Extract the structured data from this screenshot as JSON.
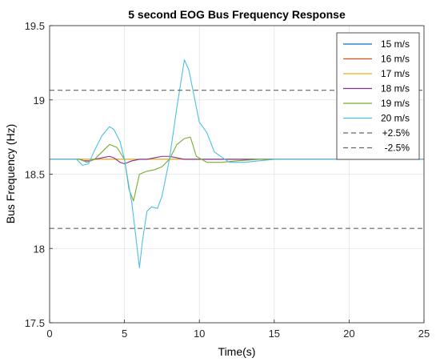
{
  "chart_data": {
    "type": "line",
    "title": "5 second EOG Bus Frequency Response",
    "xlabel": "Time(s)",
    "ylabel": "Bus Frequency (Hz)",
    "xlim": [
      0,
      25
    ],
    "ylim": [
      17.5,
      19.5
    ],
    "xticks": [
      0,
      5,
      10,
      15,
      20,
      25
    ],
    "yticks": [
      17.5,
      18,
      18.5,
      19,
      19.5
    ],
    "grid": true,
    "legend_position": "top-right",
    "series": [
      {
        "name": "15 m/s",
        "color": "#0072BD",
        "dash": "solid",
        "x": [
          0,
          25
        ],
        "y": [
          18.6,
          18.6
        ]
      },
      {
        "name": "16 m/s",
        "color": "#D95319",
        "dash": "solid",
        "x": [
          0,
          25
        ],
        "y": [
          18.6,
          18.6
        ]
      },
      {
        "name": "17 m/s",
        "color": "#EDB120",
        "dash": "solid",
        "x": [
          0,
          25
        ],
        "y": [
          18.6,
          18.6
        ]
      },
      {
        "name": "18 m/s",
        "color": "#7E2F8E",
        "dash": "solid",
        "x": [
          0,
          2,
          2.3,
          2.7,
          3,
          3.5,
          4,
          4.3,
          4.7,
          5,
          5.5,
          6,
          6.5,
          7,
          7.5,
          8,
          8.5,
          9,
          10,
          12,
          25
        ],
        "y": [
          18.6,
          18.6,
          18.59,
          18.59,
          18.6,
          18.61,
          18.62,
          18.61,
          18.58,
          18.57,
          18.59,
          18.6,
          18.6,
          18.61,
          18.62,
          18.62,
          18.61,
          18.6,
          18.6,
          18.6,
          18.6
        ]
      },
      {
        "name": "19 m/s",
        "color": "#77AC30",
        "dash": "solid",
        "x": [
          0,
          2,
          2.5,
          3,
          3.5,
          4,
          4.5,
          5,
          5.3,
          5.6,
          6,
          6.5,
          7,
          7.5,
          8,
          8.5,
          9,
          9.4,
          9.8,
          10.5,
          11.5,
          12.5,
          14,
          16,
          25
        ],
        "y": [
          18.6,
          18.6,
          18.58,
          18.6,
          18.65,
          18.7,
          18.68,
          18.6,
          18.4,
          18.32,
          18.5,
          18.52,
          18.53,
          18.55,
          18.6,
          18.7,
          18.74,
          18.75,
          18.62,
          18.58,
          18.58,
          18.59,
          18.6,
          18.6,
          18.6
        ]
      },
      {
        "name": "20 m/s",
        "color": "#4DBEEE",
        "dash": "solid",
        "x": [
          0,
          1.8,
          2.2,
          2.6,
          3,
          3.5,
          4,
          4.3,
          4.7,
          5,
          5.5,
          6,
          6.2,
          6.5,
          6.8,
          7.2,
          7.5,
          8,
          8.5,
          9,
          9.3,
          9.6,
          10,
          10.5,
          11,
          12,
          13,
          14,
          15,
          17,
          25
        ],
        "y": [
          18.6,
          18.6,
          18.56,
          18.57,
          18.66,
          18.76,
          18.82,
          18.8,
          18.72,
          18.6,
          18.3,
          17.87,
          18.05,
          18.25,
          18.28,
          18.27,
          18.35,
          18.6,
          18.95,
          19.27,
          19.2,
          19.05,
          18.85,
          18.78,
          18.65,
          18.58,
          18.58,
          18.59,
          18.6,
          18.6,
          18.6
        ]
      },
      {
        "name": "+2.5%",
        "color": "#666666",
        "dash": "dashed",
        "x": [
          0,
          25
        ],
        "y": [
          19.065,
          19.065
        ]
      },
      {
        "name": "-2.5%",
        "color": "#666666",
        "dash": "dashed",
        "x": [
          0,
          25
        ],
        "y": [
          18.135,
          18.135
        ]
      }
    ]
  }
}
